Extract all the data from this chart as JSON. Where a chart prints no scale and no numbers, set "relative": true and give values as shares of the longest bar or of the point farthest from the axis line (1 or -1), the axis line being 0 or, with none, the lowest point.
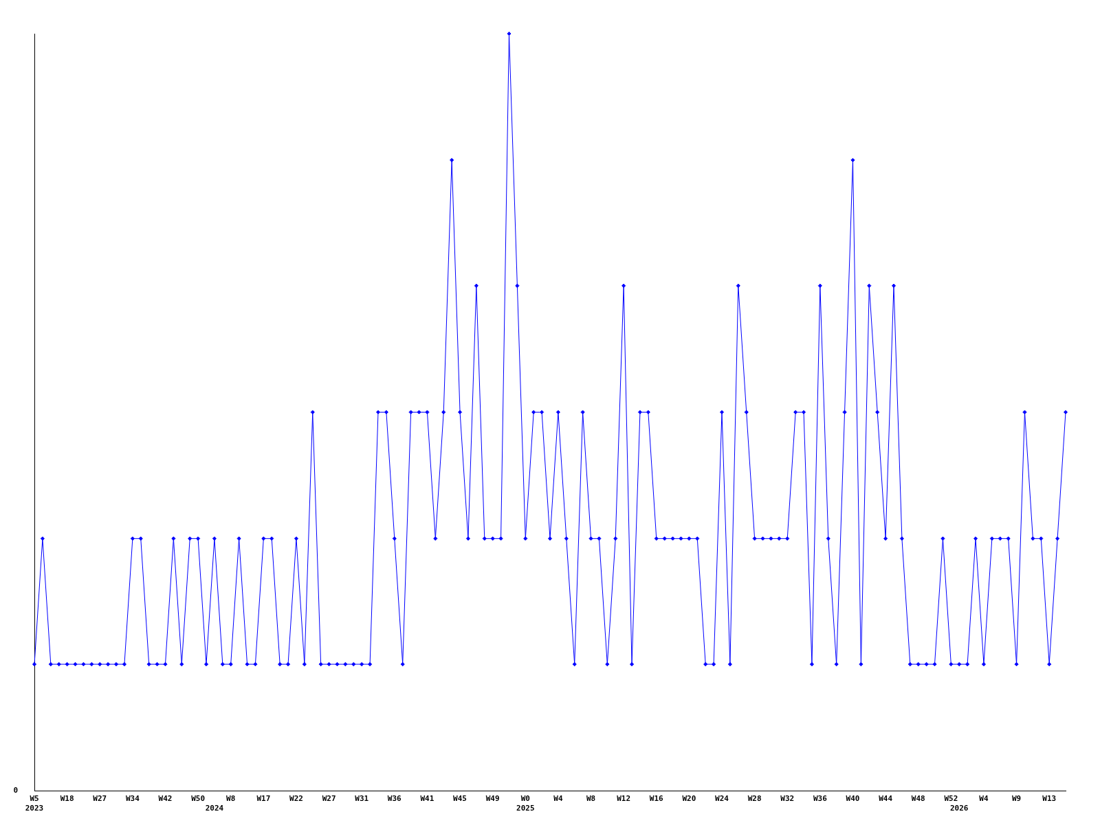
{
  "chart_data": {
    "type": "line",
    "relative": true,
    "marker": "diamond",
    "line_style": "solid",
    "annotations": [
      "0"
    ],
    "categories": [
      "W5\n2023",
      null,
      null,
      null,
      "W18",
      null,
      null,
      null,
      "W27",
      null,
      null,
      null,
      "W34",
      null,
      null,
      null,
      "W42",
      null,
      null,
      null,
      "W50",
      null,
      "\n2024",
      null,
      "W8",
      null,
      null,
      null,
      "W17",
      null,
      null,
      null,
      "W22",
      null,
      null,
      null,
      "W27",
      null,
      null,
      null,
      "W31",
      null,
      null,
      null,
      "W36",
      null,
      null,
      null,
      "W41",
      null,
      null,
      null,
      "W45",
      null,
      null,
      null,
      "W49",
      null,
      null,
      null,
      "W0\n2025",
      null,
      null,
      null,
      "W4",
      null,
      null,
      null,
      "W8",
      null,
      null,
      null,
      "W12",
      null,
      null,
      null,
      "W16",
      null,
      null,
      null,
      "W20",
      null,
      null,
      null,
      "W24",
      null,
      null,
      null,
      "W28",
      null,
      null,
      null,
      "W32",
      null,
      null,
      null,
      "W36",
      null,
      null,
      null,
      "W40",
      null,
      null,
      null,
      "W44",
      null,
      null,
      null,
      "W48",
      null,
      null,
      null,
      "W52",
      "\n2026",
      null,
      null,
      "W4",
      null,
      null,
      null,
      "W9",
      null,
      null,
      null,
      "W13",
      null,
      null
    ],
    "series": [
      {
        "color": "#0000ff",
        "values": [
          0.167,
          0.333,
          0.167,
          0.167,
          0.167,
          0.167,
          0.167,
          0.167,
          0.167,
          0.167,
          0.167,
          0.167,
          0.333,
          0.333,
          0.167,
          0.167,
          0.167,
          0.333,
          0.167,
          0.333,
          0.333,
          0.167,
          0.333,
          0.167,
          0.167,
          0.333,
          0.167,
          0.167,
          0.333,
          0.333,
          0.167,
          0.167,
          0.333,
          0.167,
          0.5,
          0.167,
          0.167,
          0.167,
          0.167,
          0.167,
          0.167,
          0.167,
          0.5,
          0.5,
          0.333,
          0.167,
          0.5,
          0.5,
          0.5,
          0.333,
          0.5,
          0.833,
          0.5,
          0.333,
          0.667,
          0.333,
          0.333,
          0.333,
          1,
          0.667,
          0.333,
          0.5,
          0.5,
          0.333,
          0.5,
          0.333,
          0.167,
          0.5,
          0.333,
          0.333,
          0.167,
          0.333,
          0.667,
          0.167,
          0.5,
          0.5,
          0.333,
          0.333,
          0.333,
          0.333,
          0.333,
          0.333,
          0.167,
          0.167,
          0.5,
          0.167,
          0.667,
          0.5,
          0.333,
          0.333,
          0.333,
          0.333,
          0.333,
          0.5,
          0.5,
          0.167,
          0.667,
          0.333,
          0.167,
          0.5,
          0.833,
          0.167,
          0.667,
          0.5,
          0.333,
          0.667,
          0.333,
          0.167,
          0.167,
          0.167,
          0.167,
          0.333,
          0.167,
          0.167,
          0.167,
          0.333,
          0.167,
          0.333,
          0.333,
          0.333,
          0.167,
          0.5,
          0.333,
          0.333,
          0.167,
          0.333,
          0.5
        ]
      }
    ]
  }
}
